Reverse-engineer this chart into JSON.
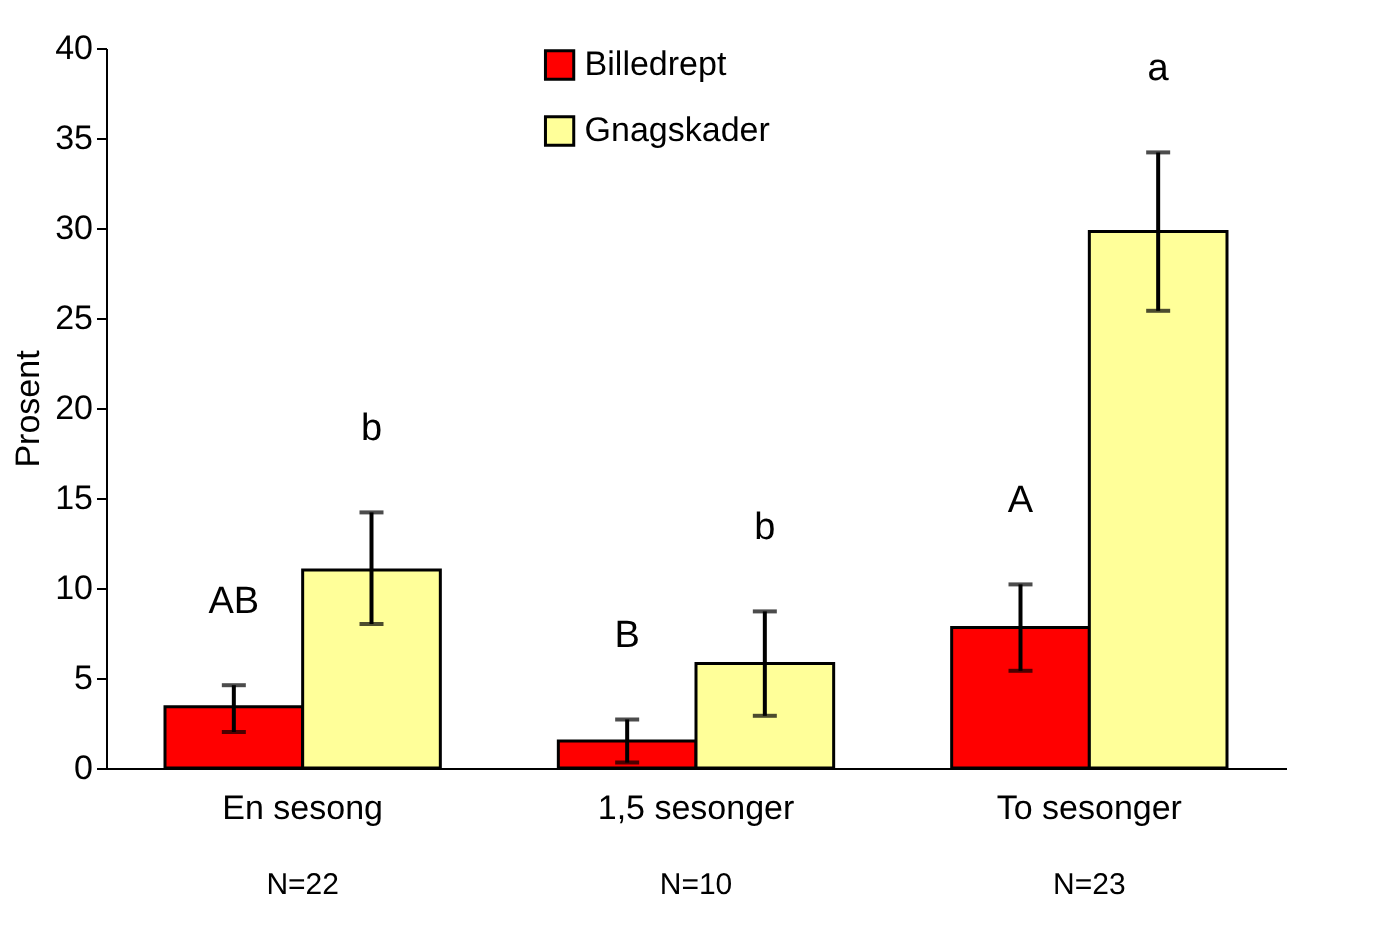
{
  "chart_data": {
    "type": "bar",
    "ylabel": "Prosent",
    "categories": [
      "En sesong",
      "1,5 sesonger",
      "To sesonger"
    ],
    "series": [
      {
        "name": "Billedrept",
        "color": "#ff0000",
        "values": [
          3.4,
          1.5,
          7.8
        ],
        "errors": [
          [
            2.0,
            4.6
          ],
          [
            0.3,
            2.7
          ],
          [
            5.4,
            10.2
          ]
        ]
      },
      {
        "name": "Gnagskader",
        "color": "#ffff99",
        "values": [
          11.0,
          5.8,
          29.8
        ],
        "errors": [
          [
            8.0,
            14.2
          ],
          [
            2.9,
            8.7
          ],
          [
            25.4,
            34.2
          ]
        ]
      }
    ],
    "ylim": [
      0,
      40
    ],
    "yticks": [
      0,
      5,
      10,
      15,
      20,
      25,
      30,
      35,
      40
    ],
    "grid": false,
    "legend": "top",
    "annotations": [
      "AB",
      "b",
      "B",
      "b",
      "A",
      "a",
      "N=22",
      "N=10",
      "N=23"
    ]
  }
}
